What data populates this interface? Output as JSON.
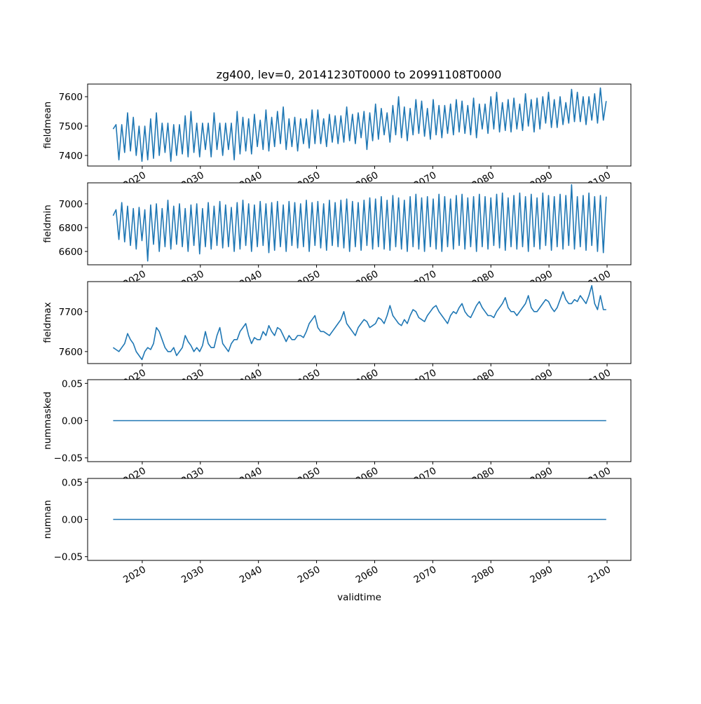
{
  "chart_data": [
    {
      "type": "line",
      "title": "zg400, lev=0, 20141230T0000 to 20991108T0000",
      "ylabel": "fieldmean",
      "xlabel": "",
      "xlim": [
        2010.6,
        2104.1
      ],
      "ylim": [
        7364,
        7643
      ],
      "yticks": [
        7400,
        7500,
        7600
      ],
      "ytick_labels": [
        "7400",
        "7500",
        "7600"
      ],
      "xticks": [
        2020,
        2030,
        2040,
        2050,
        2060,
        2070,
        2080,
        2090,
        2100
      ],
      "xtick_labels": [
        "2020",
        "2030",
        "2040",
        "2050",
        "2060",
        "2070",
        "2080",
        "2090",
        "2100"
      ],
      "color": "#1f77b4",
      "x_start": 2014.99,
      "x_end": 2099.85,
      "values": [
        7490,
        7505,
        7385,
        7505,
        7410,
        7545,
        7415,
        7530,
        7400,
        7500,
        7380,
        7500,
        7385,
        7525,
        7390,
        7545,
        7400,
        7510,
        7410,
        7510,
        7380,
        7505,
        7400,
        7505,
        7405,
        7535,
        7395,
        7550,
        7410,
        7510,
        7395,
        7510,
        7420,
        7510,
        7395,
        7545,
        7420,
        7510,
        7400,
        7510,
        7420,
        7510,
        7385,
        7550,
        7405,
        7530,
        7415,
        7525,
        7405,
        7540,
        7430,
        7520,
        7420,
        7555,
        7415,
        7530,
        7430,
        7550,
        7440,
        7565,
        7420,
        7525,
        7430,
        7530,
        7415,
        7525,
        7440,
        7525,
        7425,
        7555,
        7440,
        7555,
        7440,
        7525,
        7430,
        7540,
        7445,
        7535,
        7440,
        7535,
        7445,
        7565,
        7450,
        7540,
        7440,
        7545,
        7460,
        7550,
        7420,
        7545,
        7450,
        7575,
        7455,
        7560,
        7470,
        7545,
        7445,
        7570,
        7470,
        7600,
        7460,
        7565,
        7450,
        7560,
        7470,
        7590,
        7475,
        7585,
        7465,
        7560,
        7455,
        7590,
        7470,
        7570,
        7460,
        7570,
        7475,
        7575,
        7470,
        7590,
        7480,
        7585,
        7475,
        7570,
        7470,
        7595,
        7460,
        7575,
        7490,
        7575,
        7475,
        7600,
        7490,
        7615,
        7480,
        7580,
        7485,
        7590,
        7480,
        7595,
        7490,
        7575,
        7485,
        7610,
        7500,
        7590,
        7480,
        7595,
        7490,
        7600,
        7510,
        7615,
        7495,
        7590,
        7495,
        7600,
        7505,
        7580,
        7510,
        7625,
        7515,
        7615,
        7515,
        7600,
        7505,
        7600,
        7520,
        7610,
        7510,
        7630,
        7520,
        7585
      ]
    },
    {
      "type": "line",
      "ylabel": "fieldmin",
      "xlabel": "",
      "xlim": [
        2010.6,
        2104.1
      ],
      "ylim": [
        6488,
        7176
      ],
      "yticks": [
        6600,
        6800,
        7000
      ],
      "ytick_labels": [
        "6600",
        "6800",
        "7000"
      ],
      "xticks": [
        2020,
        2030,
        2040,
        2050,
        2060,
        2070,
        2080,
        2090,
        2100
      ],
      "xtick_labels": [
        "2020",
        "2030",
        "2040",
        "2050",
        "2060",
        "2070",
        "2080",
        "2090",
        "2100"
      ],
      "color": "#1f77b4",
      "x_start": 2014.99,
      "x_end": 2099.85,
      "values": [
        6900,
        6950,
        6700,
        7010,
        6680,
        6980,
        6650,
        6960,
        6620,
        6970,
        6690,
        6950,
        6520,
        6990,
        6660,
        7000,
        6600,
        6960,
        6640,
        7030,
        6620,
        6980,
        6660,
        7000,
        6640,
        6960,
        6600,
        6990,
        6650,
        7000,
        6580,
        6960,
        6640,
        7010,
        6620,
        6980,
        6650,
        7020,
        6630,
        6990,
        6640,
        6970,
        6600,
        7010,
        6620,
        7030,
        6650,
        7000,
        6600,
        6990,
        6640,
        7020,
        6650,
        7000,
        6590,
        7010,
        6610,
        7020,
        6640,
        6990,
        6600,
        7020,
        6650,
        7010,
        6630,
        7000,
        6640,
        7030,
        6600,
        7010,
        6650,
        7020,
        6630,
        7000,
        6610,
        7030,
        6650,
        7010,
        6640,
        7030,
        6630,
        7040,
        6600,
        7020,
        6640,
        7010,
        6610,
        7030,
        6650,
        7050,
        6620,
        7040,
        6640,
        7060,
        6620,
        7030,
        6610,
        7070,
        6640,
        7050,
        6620,
        7030,
        6600,
        7060,
        6640,
        7080,
        6620,
        7050,
        6600,
        7060,
        6640,
        7040,
        6620,
        7080,
        6600,
        7060,
        6640,
        7040,
        6620,
        7070,
        6650,
        7080,
        6620,
        7050,
        6640,
        7060,
        6600,
        7080,
        6640,
        7060,
        6620,
        7050,
        6650,
        7080,
        6630,
        7090,
        6610,
        7050,
        6640,
        7070,
        6620,
        7090,
        6640,
        7060,
        6600,
        7080,
        6640,
        7050,
        6620,
        7090,
        6650,
        7070,
        6610,
        7060,
        6640,
        7080,
        6620,
        7070,
        6650,
        7160,
        6620,
        7060,
        6640,
        7070,
        6610,
        7090,
        6650,
        7060,
        6600,
        7070,
        6590,
        7060
      ]
    },
    {
      "type": "line",
      "ylabel": "fieldmax",
      "xlabel": "",
      "xlim": [
        2010.6,
        2104.1
      ],
      "ylim": [
        7570,
        7775
      ],
      "yticks": [
        7600,
        7700
      ],
      "ytick_labels": [
        "7600",
        "7700"
      ],
      "xticks": [
        2020,
        2030,
        2040,
        2050,
        2060,
        2070,
        2080,
        2090,
        2100
      ],
      "xtick_labels": [
        "2020",
        "2030",
        "2040",
        "2050",
        "2060",
        "2070",
        "2080",
        "2090",
        "2100"
      ],
      "color": "#1f77b4",
      "x_start": 2014.99,
      "x_end": 2099.85,
      "values": [
        7610,
        7605,
        7600,
        7610,
        7620,
        7645,
        7630,
        7620,
        7600,
        7590,
        7580,
        7600,
        7610,
        7605,
        7620,
        7660,
        7650,
        7630,
        7610,
        7600,
        7600,
        7610,
        7590,
        7600,
        7610,
        7640,
        7625,
        7615,
        7600,
        7610,
        7600,
        7615,
        7650,
        7620,
        7610,
        7610,
        7640,
        7660,
        7620,
        7610,
        7600,
        7620,
        7630,
        7630,
        7650,
        7660,
        7670,
        7640,
        7620,
        7635,
        7630,
        7630,
        7650,
        7640,
        7665,
        7650,
        7640,
        7660,
        7655,
        7640,
        7625,
        7640,
        7630,
        7630,
        7640,
        7640,
        7635,
        7650,
        7670,
        7680,
        7690,
        7660,
        7650,
        7650,
        7645,
        7640,
        7650,
        7660,
        7670,
        7680,
        7700,
        7670,
        7660,
        7650,
        7640,
        7660,
        7670,
        7680,
        7675,
        7660,
        7665,
        7670,
        7685,
        7680,
        7670,
        7690,
        7715,
        7690,
        7680,
        7670,
        7665,
        7680,
        7670,
        7690,
        7705,
        7700,
        7685,
        7680,
        7675,
        7690,
        7700,
        7710,
        7715,
        7700,
        7690,
        7680,
        7670,
        7690,
        7700,
        7695,
        7710,
        7720,
        7700,
        7690,
        7685,
        7700,
        7715,
        7725,
        7710,
        7700,
        7690,
        7690,
        7685,
        7700,
        7710,
        7720,
        7735,
        7710,
        7700,
        7700,
        7690,
        7700,
        7710,
        7720,
        7740,
        7710,
        7700,
        7700,
        7710,
        7720,
        7730,
        7725,
        7710,
        7700,
        7710,
        7730,
        7750,
        7730,
        7720,
        7720,
        7730,
        7725,
        7740,
        7730,
        7720,
        7740,
        7765,
        7720,
        7705,
        7740,
        7705,
        7705
      ]
    },
    {
      "type": "line",
      "ylabel": "nummasked",
      "xlabel": "",
      "xlim": [
        2010.6,
        2104.1
      ],
      "ylim": [
        -0.055,
        0.055
      ],
      "yticks": [
        -0.05,
        0.0,
        0.05
      ],
      "ytick_labels": [
        "−0.05",
        "0.00",
        "0.05"
      ],
      "xticks": [
        2020,
        2030,
        2040,
        2050,
        2060,
        2070,
        2080,
        2090,
        2100
      ],
      "xtick_labels": [
        "2020",
        "2030",
        "2040",
        "2050",
        "2060",
        "2070",
        "2080",
        "2090",
        "2100"
      ],
      "color": "#1f77b4",
      "x_start": 2014.99,
      "x_end": 2099.85,
      "values": [
        0,
        0
      ]
    },
    {
      "type": "line",
      "ylabel": "numnan",
      "xlabel": "validtime",
      "xlim": [
        2010.6,
        2104.1
      ],
      "ylim": [
        -0.055,
        0.055
      ],
      "yticks": [
        -0.05,
        0.0,
        0.05
      ],
      "ytick_labels": [
        "−0.05",
        "0.00",
        "0.05"
      ],
      "xticks": [
        2020,
        2030,
        2040,
        2050,
        2060,
        2070,
        2080,
        2090,
        2100
      ],
      "xtick_labels": [
        "2020",
        "2030",
        "2040",
        "2050",
        "2060",
        "2070",
        "2080",
        "2090",
        "2100"
      ],
      "color": "#1f77b4",
      "x_start": 2014.99,
      "x_end": 2099.85,
      "values": [
        0,
        0
      ]
    }
  ]
}
